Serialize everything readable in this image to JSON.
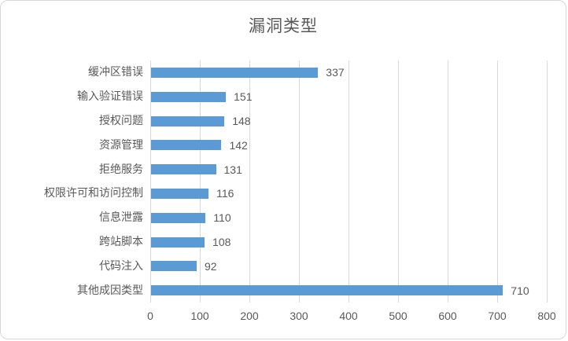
{
  "chart_data": {
    "type": "bar",
    "orientation": "horizontal",
    "title": "漏洞类型",
    "categories": [
      "缓冲区错误",
      "输入验证错误",
      "授权问题",
      "资源管理",
      "拒绝服务",
      "权限许可和访问控制",
      "信息泄露",
      "跨站脚本",
      "代码注入",
      "其他成因类型"
    ],
    "values": [
      337,
      151,
      148,
      142,
      131,
      116,
      110,
      108,
      92,
      710
    ],
    "value_labels": [
      "337",
      "151",
      "148",
      "142",
      "131",
      "116",
      "110",
      "108",
      "92",
      "710"
    ],
    "xlim": [
      0,
      800
    ],
    "x_ticks": [
      0,
      100,
      200,
      300,
      400,
      500,
      600,
      700,
      800
    ],
    "x_tick_labels": [
      "0",
      "100",
      "200",
      "300",
      "400",
      "500",
      "600",
      "700",
      "800"
    ],
    "grid": "vertical",
    "legend": "none",
    "colors": {
      "bar": "#5b9bd5",
      "gridline": "#d9d9d9",
      "text": "#595959",
      "frame_border": "#d7d7d7",
      "background": "#ffffff"
    }
  }
}
